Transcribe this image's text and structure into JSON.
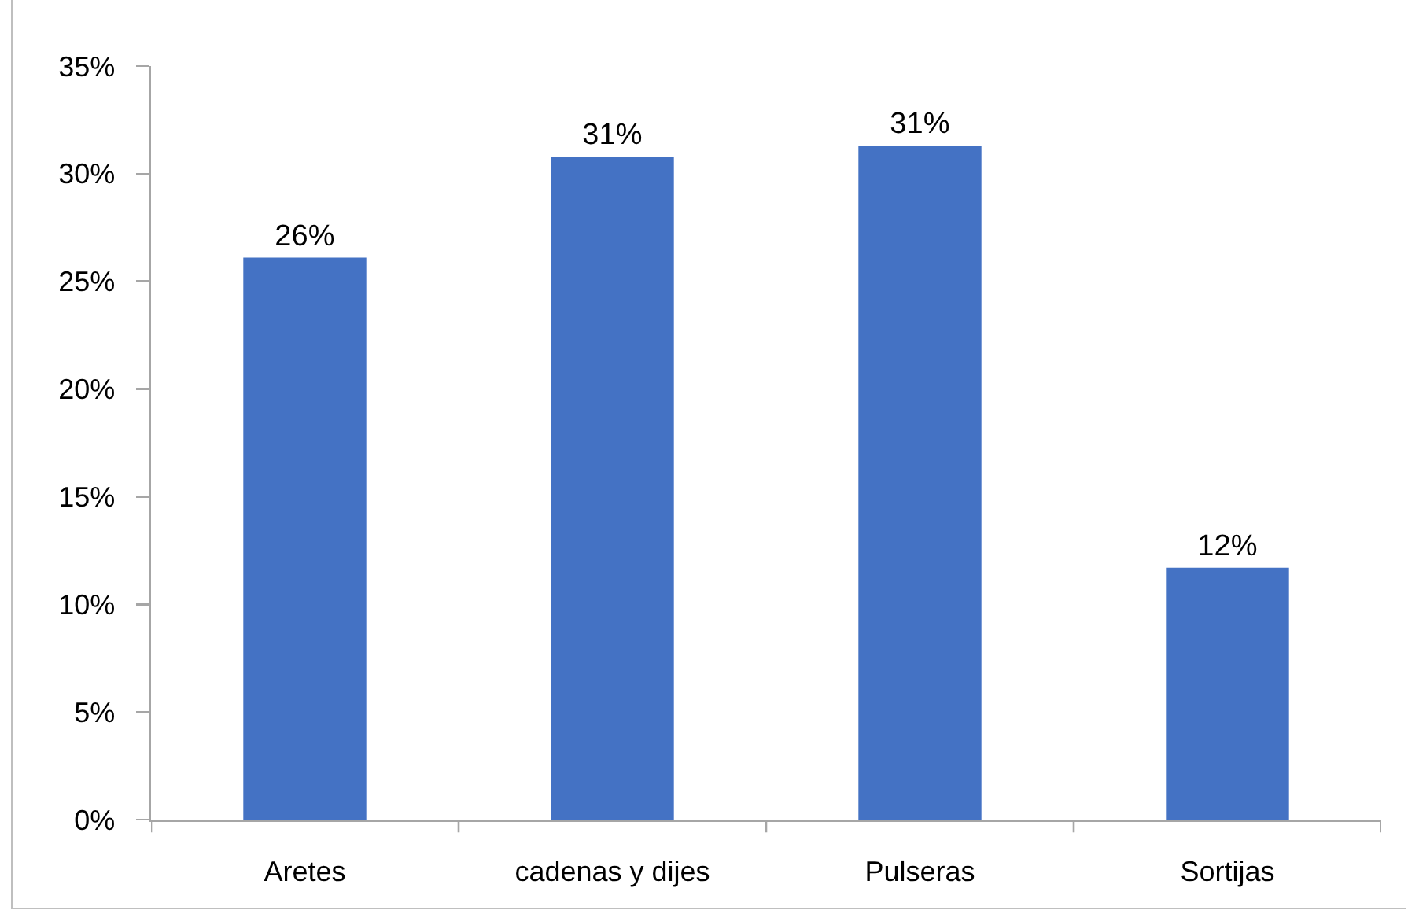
{
  "chart_data": {
    "type": "bar",
    "categories": [
      "Aretes",
      "cadenas y dijes",
      "Pulseras",
      "Sortijas"
    ],
    "values": [
      26.1,
      30.8,
      31.3,
      11.7
    ],
    "value_labels": [
      "26%",
      "31%",
      "31%",
      "12%"
    ],
    "color": "#4472c4",
    "ylim": [
      0,
      35
    ],
    "yticks": [
      {
        "value": 0,
        "label": "0%"
      },
      {
        "value": 5,
        "label": "5%"
      },
      {
        "value": 10,
        "label": "10%"
      },
      {
        "value": 15,
        "label": "15%"
      },
      {
        "value": 20,
        "label": "20%"
      },
      {
        "value": 25,
        "label": "25%"
      },
      {
        "value": 30,
        "label": "30%"
      },
      {
        "value": 35,
        "label": "35%"
      }
    ]
  }
}
